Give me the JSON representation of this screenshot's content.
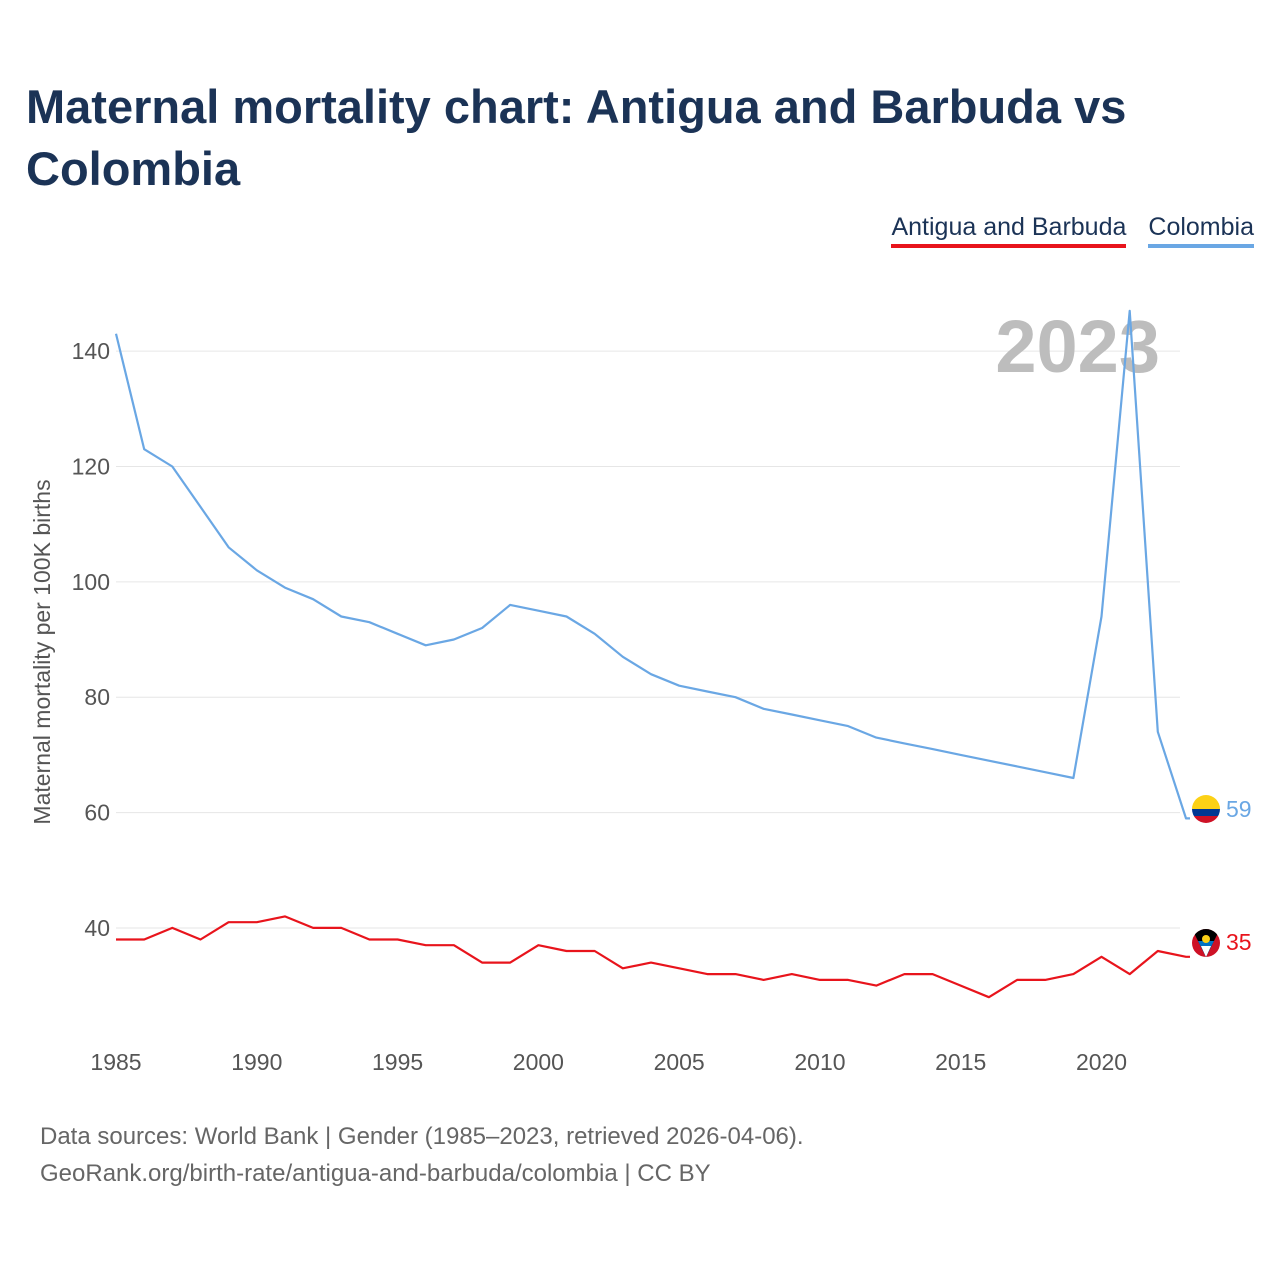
{
  "title": "Maternal mortality chart: Antigua and Barbuda vs Colombia",
  "legend": [
    {
      "label": "Antigua and Barbuda",
      "color": "#e8141c"
    },
    {
      "label": "Colombia",
      "color": "#6aa7e4"
    }
  ],
  "year_label": "2023",
  "footer": {
    "line1": "Data sources: World Bank | Gender (1985–2023, retrieved 2026-04-06).",
    "line2": "GeoRank.org/birth-rate/antigua-and-barbuda/colombia | CC BY"
  },
  "chart_data": {
    "type": "line",
    "title": "Maternal mortality chart: Antigua and Barbuda vs Colombia",
    "xlabel": "",
    "ylabel": "Maternal mortality per 100K births",
    "xlim": [
      1985,
      2023
    ],
    "ylim": [
      23,
      148
    ],
    "x_ticks": [
      1985,
      1990,
      1995,
      2000,
      2005,
      2010,
      2015,
      2020
    ],
    "y_ticks": [
      40,
      60,
      80,
      100,
      120,
      140
    ],
    "grid": true,
    "x": [
      1985,
      1986,
      1987,
      1988,
      1989,
      1990,
      1991,
      1992,
      1993,
      1994,
      1995,
      1996,
      1997,
      1998,
      1999,
      2000,
      2001,
      2002,
      2003,
      2004,
      2005,
      2006,
      2007,
      2008,
      2009,
      2010,
      2011,
      2012,
      2013,
      2014,
      2015,
      2016,
      2017,
      2018,
      2019,
      2020,
      2021,
      2022,
      2023
    ],
    "series": [
      {
        "name": "Antigua and Barbuda",
        "color": "#e8141c",
        "values": [
          38,
          38,
          40,
          38,
          41,
          41,
          42,
          40,
          40,
          38,
          38,
          37,
          37,
          34,
          34,
          37,
          36,
          36,
          33,
          34,
          33,
          32,
          32,
          31,
          32,
          31,
          31,
          30,
          32,
          32,
          30,
          28,
          31,
          31,
          32,
          35,
          32,
          36,
          35
        ],
        "end_label": "35"
      },
      {
        "name": "Colombia",
        "color": "#6aa7e4",
        "values": [
          143,
          123,
          120,
          113,
          106,
          102,
          99,
          97,
          94,
          93,
          91,
          89,
          90,
          92,
          96,
          95,
          94,
          91,
          87,
          84,
          82,
          81,
          80,
          78,
          77,
          76,
          75,
          73,
          72,
          71,
          70,
          69,
          68,
          67,
          66,
          94,
          147,
          74,
          59
        ],
        "end_label": "59"
      }
    ]
  }
}
